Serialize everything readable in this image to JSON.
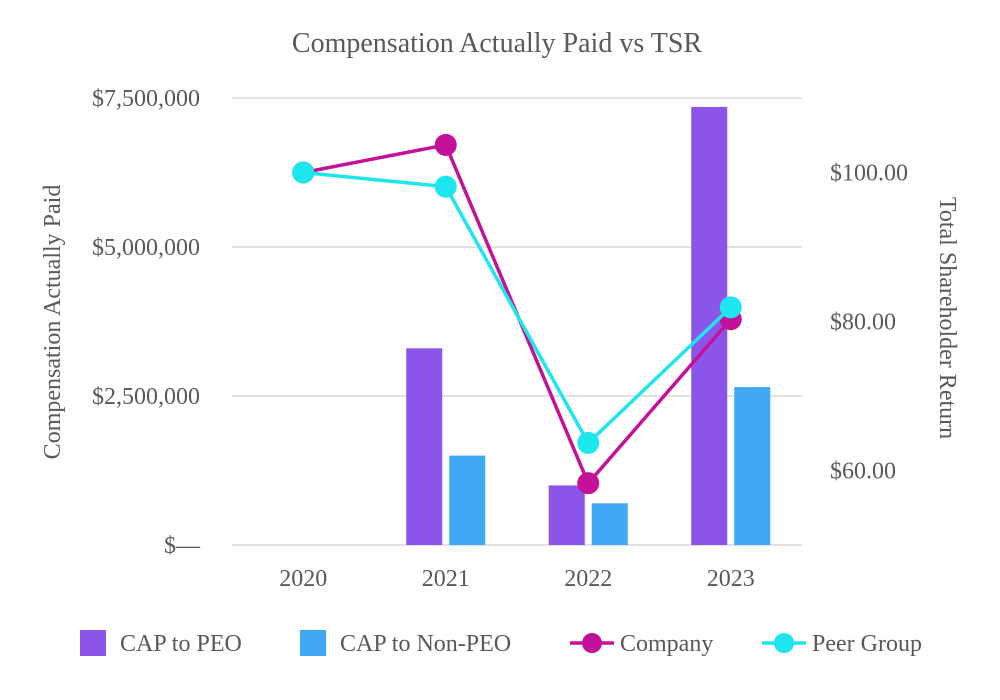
{
  "chart_data": {
    "type": "bar+line",
    "title": "Compensation Actually Paid vs TSR",
    "categories": [
      "2020",
      "2021",
      "2022",
      "2023"
    ],
    "y_left": {
      "label": "Compensation Actually Paid",
      "range": [
        0,
        7500000
      ],
      "ticks": [
        0,
        2500000,
        5000000,
        7500000
      ],
      "tick_labels": [
        "$—",
        "$2,500,000",
        "$5,000,000",
        "$7,500,000"
      ]
    },
    "y_right": {
      "label": "Total Shareholder Return",
      "range": [
        50,
        110
      ],
      "ticks": [
        60,
        80,
        100
      ],
      "tick_labels": [
        "$60.00",
        "$80.00",
        "$100.00"
      ]
    },
    "bar_series": [
      {
        "name": "CAP to PEO",
        "color": "#8c55ea",
        "values": [
          0,
          3300000,
          1000000,
          7350000
        ]
      },
      {
        "name": "CAP to Non-PEO",
        "color": "#3fa9f5",
        "values": [
          0,
          1500000,
          700000,
          2650000
        ]
      }
    ],
    "line_series": [
      {
        "name": "Company",
        "color": "#c3119a",
        "values": [
          100,
          103.7,
          58.3,
          80.3
        ]
      },
      {
        "name": "Peer Group",
        "color": "#1de6ef",
        "values": [
          100,
          98.1,
          63.7,
          81.9
        ]
      }
    ],
    "legend": {
      "position": "bottom",
      "items": [
        "CAP to PEO",
        "CAP to Non-PEO",
        "Company",
        "Peer Group"
      ]
    },
    "grid": true
  }
}
